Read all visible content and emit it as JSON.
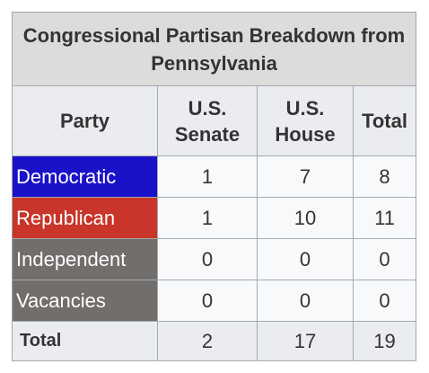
{
  "table": {
    "caption": "Congressional Partisan Breakdown from Pennsylvania",
    "headers": {
      "party": "Party",
      "senate": "U.S. Senate",
      "house": "U.S. House",
      "total": "Total"
    },
    "rows": [
      {
        "party": "Democratic",
        "color": "#1a12c9",
        "senate": "1",
        "house": "7",
        "total": "8"
      },
      {
        "party": "Republican",
        "color": "#c9352a",
        "senate": "1",
        "house": "10",
        "total": "11"
      },
      {
        "party": "Independent",
        "color": "#716e6c",
        "senate": "0",
        "house": "0",
        "total": "0"
      },
      {
        "party": "Vacancies",
        "color": "#716e6c",
        "senate": "0",
        "house": "0",
        "total": "0"
      }
    ],
    "totals": {
      "label": "Total",
      "senate": "2",
      "house": "17",
      "total": "19"
    }
  }
}
